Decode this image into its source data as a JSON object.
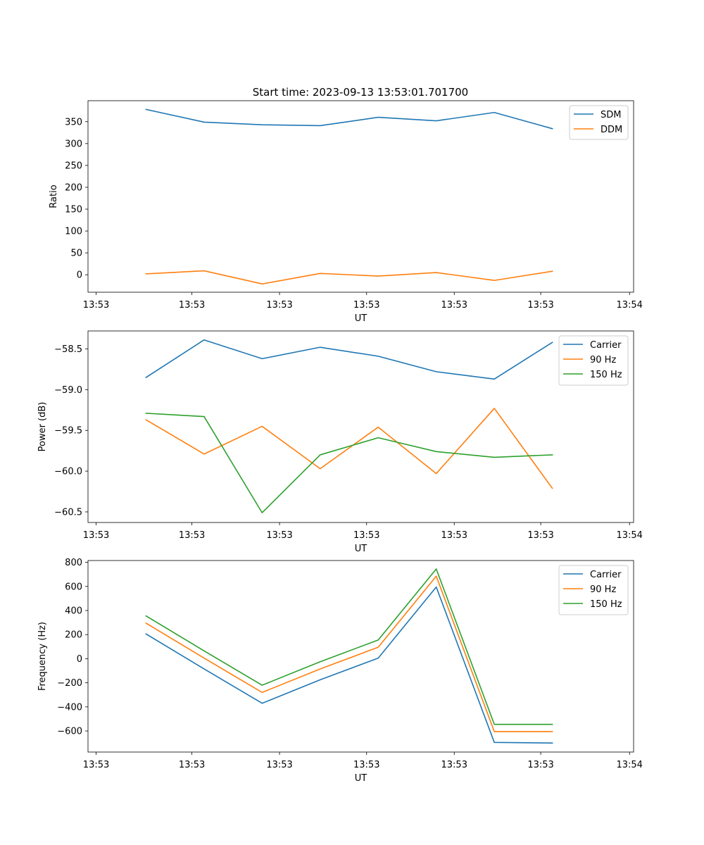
{
  "figure_title": "Start time: 2023-09-13 13:53:01.701700",
  "colors": {
    "blue": "#1f77b4",
    "orange": "#ff7f0e",
    "green": "#2ca02c",
    "axis": "#000000",
    "legend_border": "#cccccc"
  },
  "chart_data": [
    {
      "type": "line",
      "title": "Start time: 2023-09-13 13:53:01.701700",
      "xlabel": "UT",
      "ylabel": "Ratio",
      "x": [
        1.0,
        2.0,
        3.0,
        4.0,
        5.0,
        6.0,
        7.0,
        8.0
      ],
      "xlim": [
        0.0,
        9.4
      ],
      "xticks": [
        0.14,
        1.79,
        3.3,
        4.8,
        6.31,
        7.8,
        9.33
      ],
      "xtick_labels": [
        "13:53",
        "13:53",
        "13:53",
        "13:53",
        "13:53",
        "13:53",
        "13:54"
      ],
      "ylim": [
        -40,
        398
      ],
      "yticks": [
        0,
        50,
        100,
        150,
        200,
        250,
        300,
        350
      ],
      "ytick_labels": [
        "0",
        "50",
        "100",
        "150",
        "200",
        "250",
        "300",
        "350"
      ],
      "legend": "top-right",
      "series": [
        {
          "name": "SDM",
          "color": "#1f77b4",
          "values": [
            378,
            349,
            343,
            341,
            360,
            352,
            371,
            334
          ]
        },
        {
          "name": "DDM",
          "color": "#ff7f0e",
          "values": [
            2,
            9,
            -21,
            3,
            -3,
            5,
            -13,
            8
          ]
        }
      ]
    },
    {
      "type": "line",
      "title": "",
      "xlabel": "UT",
      "ylabel": "Power (dB)",
      "x": [
        1.0,
        2.0,
        3.0,
        4.0,
        5.0,
        6.0,
        7.0,
        8.0
      ],
      "xlim": [
        0.0,
        9.4
      ],
      "xticks": [
        0.14,
        1.79,
        3.3,
        4.8,
        6.31,
        7.8,
        9.33
      ],
      "xtick_labels": [
        "13:53",
        "13:53",
        "13:53",
        "13:53",
        "13:53",
        "13:53",
        "13:54"
      ],
      "ylim": [
        -60.63,
        -58.28
      ],
      "yticks": [
        -60.5,
        -60.0,
        -59.5,
        -59.0,
        -58.5
      ],
      "ytick_labels": [
        "−60.5",
        "−60.0",
        "−59.5",
        "−59.0",
        "−58.5"
      ],
      "legend": "top-right",
      "series": [
        {
          "name": "Carrier",
          "color": "#1f77b4",
          "values": [
            -58.85,
            -58.39,
            -58.62,
            -58.48,
            -58.59,
            -58.78,
            -58.87,
            -58.42
          ]
        },
        {
          "name": "90 Hz",
          "color": "#ff7f0e",
          "values": [
            -59.37,
            -59.79,
            -59.45,
            -59.97,
            -59.46,
            -60.03,
            -59.23,
            -60.21
          ]
        },
        {
          "name": "150 Hz",
          "color": "#2ca02c",
          "values": [
            -59.29,
            -59.33,
            -60.51,
            -59.8,
            -59.59,
            -59.76,
            -59.83,
            -59.8
          ]
        }
      ]
    },
    {
      "type": "line",
      "title": "",
      "xlabel": "UT",
      "ylabel": "Frequency (Hz)",
      "x": [
        1.0,
        2.0,
        3.0,
        4.0,
        5.0,
        6.0,
        7.0,
        8.0
      ],
      "xlim": [
        0.0,
        9.4
      ],
      "xticks": [
        0.14,
        1.79,
        3.3,
        4.8,
        6.31,
        7.8,
        9.33
      ],
      "xtick_labels": [
        "13:53",
        "13:53",
        "13:53",
        "13:53",
        "13:53",
        "13:53",
        "13:54"
      ],
      "ylim": [
        -775,
        815
      ],
      "yticks": [
        -600,
        -400,
        -200,
        0,
        200,
        400,
        600,
        800
      ],
      "ytick_labels": [
        "−600",
        "−400",
        "−200",
        "0",
        "200",
        "400",
        "600",
        "800"
      ],
      "legend": "top-right",
      "series": [
        {
          "name": "Carrier",
          "color": "#1f77b4",
          "values": [
            205,
            -85,
            -370,
            -175,
            5,
            595,
            -695,
            -700
          ]
        },
        {
          "name": "90 Hz",
          "color": "#ff7f0e",
          "values": [
            295,
            5,
            -280,
            -85,
            95,
            685,
            -605,
            -605
          ]
        },
        {
          "name": "150 Hz",
          "color": "#2ca02c",
          "values": [
            355,
            65,
            -220,
            -25,
            155,
            745,
            -545,
            -545
          ]
        }
      ]
    }
  ]
}
